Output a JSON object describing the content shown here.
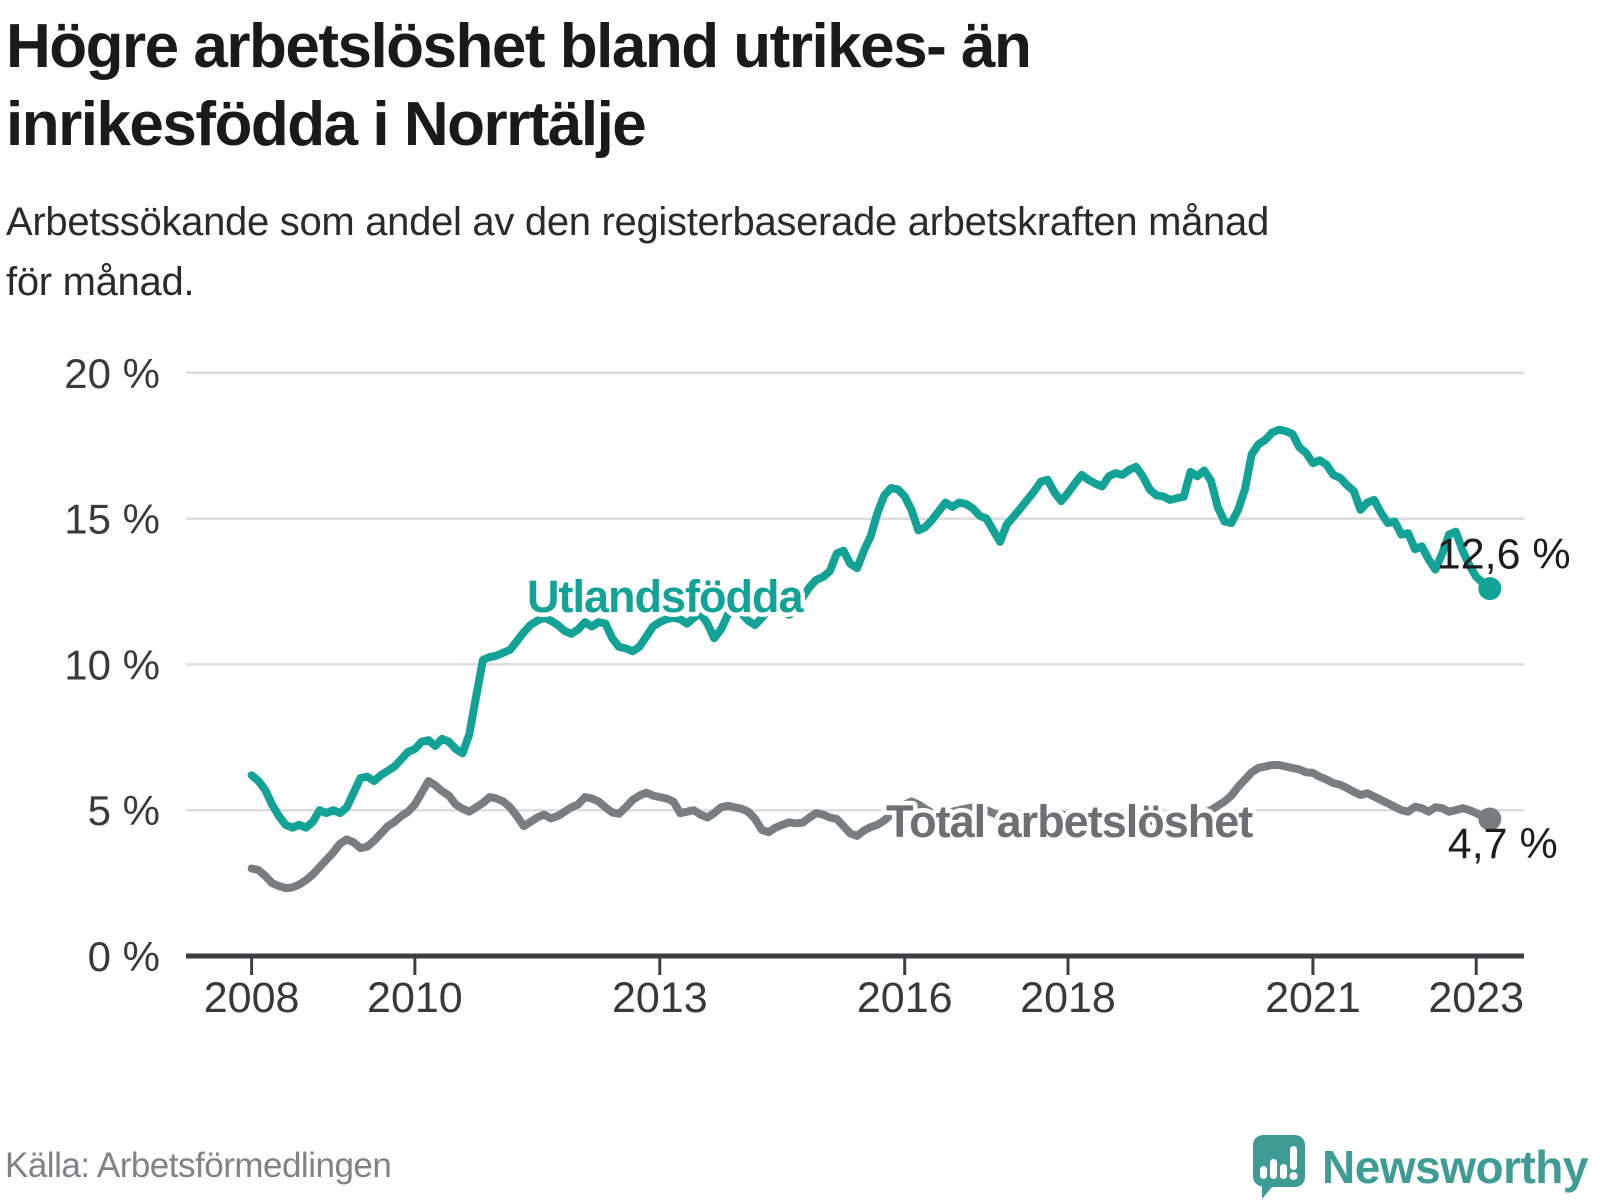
{
  "header": {
    "title_lines": [
      "Högre arbetslöshet bland utrikes- än",
      "inrikesfödda i Norrtälje"
    ],
    "subtitle_lines": [
      "Arbetssökande som andel av den registerbaserade arbetskraften månad",
      "för månad."
    ]
  },
  "chart_data": {
    "type": "line",
    "title": "Högre arbetslöshet bland utrikes- än inrikesfödda i Norrtälje",
    "subtitle": "Arbetssökande som andel av den registerbaserade arbetskraften månad för månad.",
    "x_unit": "month",
    "x_start": "2008-01",
    "x_end": "2023-03",
    "ylim": [
      0,
      20
    ],
    "grid": true,
    "legend_position": "inline-labels",
    "y_ticks": [
      {
        "value": 20,
        "label": "20 %"
      },
      {
        "value": 15,
        "label": "15 %"
      },
      {
        "value": 10,
        "label": "10 %"
      },
      {
        "value": 5,
        "label": "5 %"
      },
      {
        "value": 0,
        "label": "0 %"
      }
    ],
    "x_ticks": [
      {
        "year": 2008,
        "label": "2008"
      },
      {
        "year": 2010,
        "label": "2010"
      },
      {
        "year": 2013,
        "label": "2013"
      },
      {
        "year": 2016,
        "label": "2016"
      },
      {
        "year": 2018,
        "label": "2018"
      },
      {
        "year": 2021,
        "label": "2021"
      },
      {
        "year": 2023,
        "label": "2023"
      }
    ],
    "series": [
      {
        "name": "Utlandsfödda",
        "color": "#12a296",
        "end_label": "12,6 %",
        "end_value": 12.6,
        "values": [
          6.2,
          6.0,
          5.7,
          5.2,
          4.8,
          4.5,
          4.4,
          4.5,
          4.4,
          4.6,
          5.0,
          4.9,
          5.0,
          4.9,
          5.1,
          5.6,
          6.1,
          6.15,
          6.0,
          6.2,
          6.35,
          6.5,
          6.75,
          7.0,
          7.1,
          7.35,
          7.4,
          7.2,
          7.45,
          7.35,
          7.1,
          6.95,
          7.6,
          8.9,
          10.15,
          10.25,
          10.3,
          10.4,
          10.5,
          10.8,
          11.1,
          11.35,
          11.5,
          11.6,
          11.5,
          11.35,
          11.15,
          11.05,
          11.2,
          11.45,
          11.3,
          11.45,
          11.4,
          10.9,
          10.6,
          10.55,
          10.45,
          10.6,
          10.95,
          11.3,
          11.45,
          11.55,
          11.6,
          11.55,
          11.4,
          11.6,
          11.75,
          11.4,
          10.9,
          11.2,
          11.7,
          11.9,
          11.75,
          11.5,
          11.35,
          11.6,
          11.9,
          12.1,
          11.9,
          11.7,
          12.0,
          12.3,
          12.65,
          12.9,
          13.0,
          13.2,
          13.8,
          13.9,
          13.45,
          13.3,
          13.9,
          14.4,
          15.2,
          15.8,
          16.05,
          16.0,
          15.76,
          15.3,
          14.6,
          14.7,
          14.95,
          15.25,
          15.55,
          15.4,
          15.55,
          15.5,
          15.35,
          15.1,
          15.0,
          14.6,
          14.2,
          14.8,
          15.07,
          15.35,
          15.64,
          15.93,
          16.27,
          16.33,
          15.9,
          15.6,
          15.88,
          16.2,
          16.5,
          16.33,
          16.2,
          16.1,
          16.45,
          16.56,
          16.5,
          16.67,
          16.78,
          16.45,
          16.0,
          15.8,
          15.76,
          15.64,
          15.7,
          15.75,
          16.6,
          16.45,
          16.65,
          16.3,
          15.4,
          14.9,
          14.85,
          15.3,
          16.0,
          17.2,
          17.55,
          17.7,
          17.95,
          18.05,
          18.0,
          17.9,
          17.45,
          17.25,
          16.9,
          17.0,
          16.85,
          16.5,
          16.4,
          16.15,
          15.95,
          15.3,
          15.55,
          15.64,
          15.2,
          14.85,
          14.9,
          14.45,
          14.5,
          13.95,
          14.05,
          13.6,
          13.25,
          13.8,
          14.45,
          14.55,
          13.9,
          13.4,
          13.0,
          12.8,
          12.6
        ]
      },
      {
        "name": "Total arbetslöshet",
        "color": "#7b7c80",
        "end_label": "4,7 %",
        "end_value": 4.7,
        "values": [
          3.0,
          2.95,
          2.75,
          2.5,
          2.4,
          2.33,
          2.35,
          2.45,
          2.6,
          2.8,
          3.05,
          3.3,
          3.55,
          3.85,
          4.0,
          3.9,
          3.7,
          3.75,
          3.95,
          4.2,
          4.45,
          4.6,
          4.8,
          4.95,
          5.2,
          5.6,
          6.0,
          5.85,
          5.65,
          5.5,
          5.2,
          5.05,
          4.95,
          5.1,
          5.25,
          5.45,
          5.4,
          5.3,
          5.1,
          4.8,
          4.45,
          4.6,
          4.75,
          4.85,
          4.72,
          4.8,
          4.95,
          5.1,
          5.2,
          5.45,
          5.4,
          5.3,
          5.1,
          4.92,
          4.88,
          5.1,
          5.35,
          5.5,
          5.6,
          5.5,
          5.45,
          5.4,
          5.3,
          4.9,
          4.95,
          5.0,
          4.85,
          4.75,
          4.9,
          5.1,
          5.15,
          5.1,
          5.05,
          4.95,
          4.7,
          4.32,
          4.25,
          4.4,
          4.5,
          4.58,
          4.55,
          4.57,
          4.75,
          4.9,
          4.85,
          4.75,
          4.7,
          4.45,
          4.2,
          4.12,
          4.3,
          4.42,
          4.5,
          4.65,
          4.85,
          5.1,
          5.2,
          5.3,
          5.2,
          5.05,
          4.9,
          4.8,
          4.85,
          4.95,
          5.0,
          5.05,
          5.1,
          5.05,
          5.0,
          4.9,
          4.8,
          4.7,
          4.6,
          4.65,
          4.7,
          4.75,
          4.8,
          4.85,
          4.9,
          4.85,
          4.8,
          4.7,
          4.6,
          4.5,
          4.42,
          4.45,
          4.5,
          4.4,
          4.45,
          4.5,
          4.55,
          4.6,
          4.65,
          4.6,
          4.55,
          4.6,
          4.65,
          4.7,
          4.8,
          4.85,
          4.9,
          5.0,
          5.15,
          5.3,
          5.5,
          5.8,
          6.05,
          6.3,
          6.45,
          6.5,
          6.55,
          6.55,
          6.5,
          6.45,
          6.4,
          6.3,
          6.28,
          6.15,
          6.05,
          5.93,
          5.87,
          5.76,
          5.63,
          5.52,
          5.58,
          5.47,
          5.35,
          5.24,
          5.12,
          5.0,
          4.95,
          5.12,
          5.07,
          4.95,
          5.1,
          5.07,
          4.95,
          5.0,
          5.07,
          5.0,
          4.9,
          4.78,
          4.7
        ]
      }
    ]
  },
  "footer": {
    "source": "Källa: Arbetsförmedlingen",
    "brand": "Newsworthy"
  },
  "colors": {
    "accent_teal": "#12a296",
    "line_gray": "#7b7c80",
    "grid": "#dcdcdc",
    "axis": "#3e3e42",
    "text_dark": "#1a1a1a",
    "source_gray": "#828286",
    "brand_teal": "#3f9c95"
  }
}
